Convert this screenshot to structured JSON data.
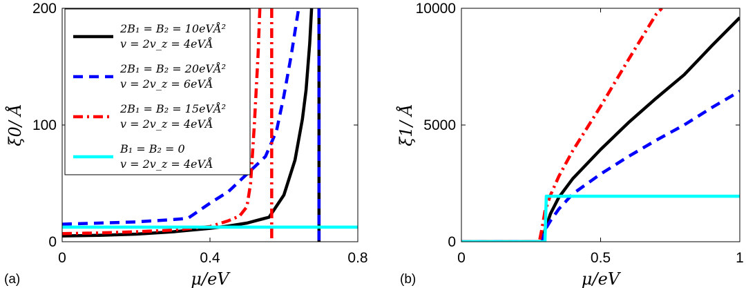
{
  "chart_data": [
    {
      "type": "line",
      "panel_label": "(a)",
      "xlabel": "μ/eV",
      "ylabel": "ξ0/ Å",
      "xlim": [
        0,
        0.8
      ],
      "ylim": [
        0,
        200
      ],
      "xticks": [
        0,
        0.4,
        0.8
      ],
      "xtick_labels": [
        "0",
        "0.4",
        "0.8"
      ],
      "yticks": [
        0,
        100,
        200
      ],
      "ytick_labels": [
        "0",
        "100",
        "200"
      ],
      "legend_position": "top-left",
      "series": [
        {
          "name": "2B1 = B2 = 10 eV Å²",
          "legend_line1": "2B₁ = B₂ = 10eVÅ²",
          "legend_line2": "v = 2v_z = 4eVÅ",
          "color": "#000000",
          "style": "solid",
          "points": [
            [
              0,
              5
            ],
            [
              0.1,
              5.5
            ],
            [
              0.2,
              6.5
            ],
            [
              0.3,
              8.5
            ],
            [
              0.4,
              11.5
            ],
            [
              0.45,
              13.5
            ],
            [
              0.5,
              16
            ],
            [
              0.53,
              18.5
            ],
            [
              0.56,
              21
            ],
            [
              0.6,
              40
            ],
            [
              0.63,
              70
            ],
            [
              0.65,
              105
            ],
            [
              0.66,
              130
            ],
            [
              0.67,
              170
            ],
            [
              0.675,
              200
            ]
          ],
          "vertical_asymptote": 0.695
        },
        {
          "name": "2B1 = B2 = 20 eV Å²",
          "legend_line1": "2B₁ = B₂ = 20eVÅ²",
          "legend_line2": "v = 2v_z = 6eVÅ",
          "color": "#0000ff",
          "style": "dashed",
          "points": [
            [
              0,
              15
            ],
            [
              0.1,
              16
            ],
            [
              0.2,
              17
            ],
            [
              0.3,
              19
            ],
            [
              0.34,
              20
            ],
            [
              0.4,
              33
            ],
            [
              0.45,
              43
            ],
            [
              0.5,
              58
            ],
            [
              0.55,
              73
            ],
            [
              0.58,
              95
            ],
            [
              0.6,
              125
            ],
            [
              0.62,
              160
            ],
            [
              0.635,
              190
            ],
            [
              0.64,
              200
            ]
          ],
          "vertical_asymptote": 0.695
        },
        {
          "name": "2B1 = B2 = 15 eV Å²",
          "legend_line1": "2B₁ = B₂ = 15eVÅ²",
          "legend_line2": "v = 2v_z = 4eVÅ",
          "color": "#ff0000",
          "style": "dashdot",
          "points": [
            [
              0,
              7
            ],
            [
              0.1,
              7.5
            ],
            [
              0.2,
              8.5
            ],
            [
              0.3,
              10
            ],
            [
              0.4,
              13
            ],
            [
              0.45,
              18
            ],
            [
              0.48,
              22
            ],
            [
              0.5,
              30
            ],
            [
              0.51,
              50
            ],
            [
              0.52,
              100
            ],
            [
              0.53,
              160
            ],
            [
              0.535,
              200
            ]
          ],
          "vertical_asymptote": 0.567
        },
        {
          "name": "B1 = B2 = 0",
          "legend_line1": "B₁ = B₂ = 0",
          "legend_line2": "v = 2v_z = 4eVÅ",
          "color": "#00ffff",
          "style": "solid",
          "points": [
            [
              0,
              12.5
            ],
            [
              0.8,
              12.5
            ]
          ]
        }
      ]
    },
    {
      "type": "line",
      "panel_label": "(b)",
      "xlabel": "μ/eV",
      "ylabel": "ξ1/ Å",
      "xlim": [
        0,
        1
      ],
      "ylim": [
        0,
        10000
      ],
      "xticks": [
        0,
        0.5,
        1
      ],
      "xtick_labels": [
        "0",
        "0.5",
        "1"
      ],
      "yticks": [
        0,
        5000,
        10000
      ],
      "ytick_labels": [
        "0",
        "5000",
        "10000"
      ],
      "series": [
        {
          "name": "2B1 = B2 = 10 eV Å²",
          "color": "#000000",
          "style": "solid",
          "points": [
            [
              0,
              0
            ],
            [
              0.29,
              0
            ],
            [
              0.3,
              500
            ],
            [
              0.32,
              1200
            ],
            [
              0.35,
              1900
            ],
            [
              0.4,
              2700
            ],
            [
              0.5,
              3950
            ],
            [
              0.6,
              5100
            ],
            [
              0.7,
              6150
            ],
            [
              0.8,
              7150
            ],
            [
              0.9,
              8400
            ],
            [
              1.0,
              9600
            ]
          ]
        },
        {
          "name": "2B1 = B2 = 20 eV Å²",
          "color": "#0000ff",
          "style": "dashed",
          "points": [
            [
              0,
              0
            ],
            [
              0.29,
              0
            ],
            [
              0.3,
              500
            ],
            [
              0.32,
              900
            ],
            [
              0.35,
              1400
            ],
            [
              0.4,
              2050
            ],
            [
              0.5,
              2900
            ],
            [
              0.6,
              3650
            ],
            [
              0.7,
              4350
            ],
            [
              0.8,
              5000
            ],
            [
              0.9,
              5750
            ],
            [
              1.0,
              6450
            ]
          ]
        },
        {
          "name": "2B1 = B2 = 15 eV Å²",
          "color": "#ff0000",
          "style": "dashdot",
          "points": [
            [
              0,
              0
            ],
            [
              0.28,
              0
            ],
            [
              0.29,
              600
            ],
            [
              0.3,
              1300
            ],
            [
              0.32,
              2000
            ],
            [
              0.35,
              2800
            ],
            [
              0.4,
              3900
            ],
            [
              0.5,
              5800
            ],
            [
              0.6,
              7800
            ],
            [
              0.7,
              9750
            ],
            [
              0.72,
              10000
            ]
          ]
        },
        {
          "name": "B1 = B2 = 0",
          "color": "#00ffff",
          "style": "solid",
          "points": [
            [
              0,
              0
            ],
            [
              0.3,
              0
            ],
            [
              0.305,
              1950
            ],
            [
              1.0,
              1950
            ]
          ]
        }
      ]
    }
  ]
}
